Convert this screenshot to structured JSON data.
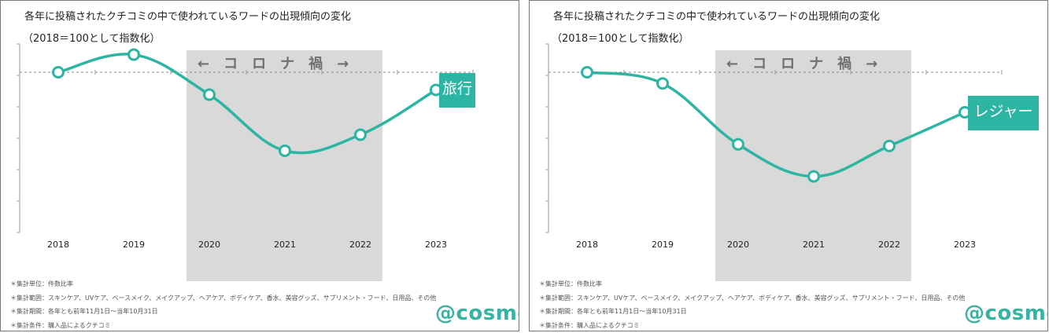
{
  "panels": [
    {
      "title": "各年に投稿されたクチコミの中で使われているワードの出現傾向の変化",
      "subtitle": "（2018＝100として指数化）",
      "shaded_label": "←　コ　ロ　ナ　禍　→",
      "series_label": "旅行",
      "notes": [
        "＊集計単位：件数比率",
        "＊集計範囲：スキンケア、UVケア、ベースメイク、メイクアップ、ヘアケア、ボディケア、香水、美容グッズ、サプリメント・フード、日用品、その他",
        "＊集計期間：各年とも前年11月1日～当年10月31日",
        "＊集計条件：購入品によるクチコミ"
      ],
      "logo": "@cosme",
      "chart_data": {
        "type": "line",
        "title": "各年に投稿されたクチコミの中で使われているワードの出現傾向の変化",
        "subtitle": "（2018＝100として指数化）",
        "categories": [
          "2018",
          "2019",
          "2020",
          "2021",
          "2022",
          "2023"
        ],
        "series": [
          {
            "name": "旅行",
            "values": [
              100,
              111,
              86,
              51,
              61,
              89
            ]
          }
        ],
        "baseline": 100,
        "shaded_range": [
          "2020",
          "2022"
        ],
        "ylim": [
          0,
          112
        ],
        "y_ticks_labeled": false,
        "xlabel": "",
        "ylabel": "",
        "grid": false,
        "color": "#2db5a3"
      }
    },
    {
      "title": "各年に投稿されたクチコミの中で使われているワードの出現傾向の変化",
      "subtitle": "（2018＝100として指数化）",
      "shaded_label": "←　コ　ロ　ナ　禍　→",
      "series_label": "レジャー",
      "notes": [
        "＊集計単位：件数比率",
        "＊集計範囲：スキンケア、UVケア、ベースメイク、メイクアップ、ヘアケア、ボディケア、香水、美容グッズ、サプリメント・フード、日用品、その他",
        "＊集計期間：各年とも前年11月1日～当年10月31日",
        "＊集計条件：購入品によるクチコミ"
      ],
      "logo": "@cosme",
      "chart_data": {
        "type": "line",
        "title": "各年に投稿されたクチコミの中で使われているワードの出現傾向の変化",
        "subtitle": "（2018＝100として指数化）",
        "categories": [
          "2018",
          "2019",
          "2020",
          "2021",
          "2022",
          "2023"
        ],
        "series": [
          {
            "name": "レジャー",
            "values": [
              100,
              93,
              55,
              35,
              54,
              75
            ]
          }
        ],
        "baseline": 100,
        "shaded_range": [
          "2020",
          "2022"
        ],
        "ylim": [
          0,
          112
        ],
        "y_ticks_labeled": false,
        "xlabel": "",
        "ylabel": "",
        "grid": false,
        "color": "#2db5a3"
      }
    }
  ]
}
